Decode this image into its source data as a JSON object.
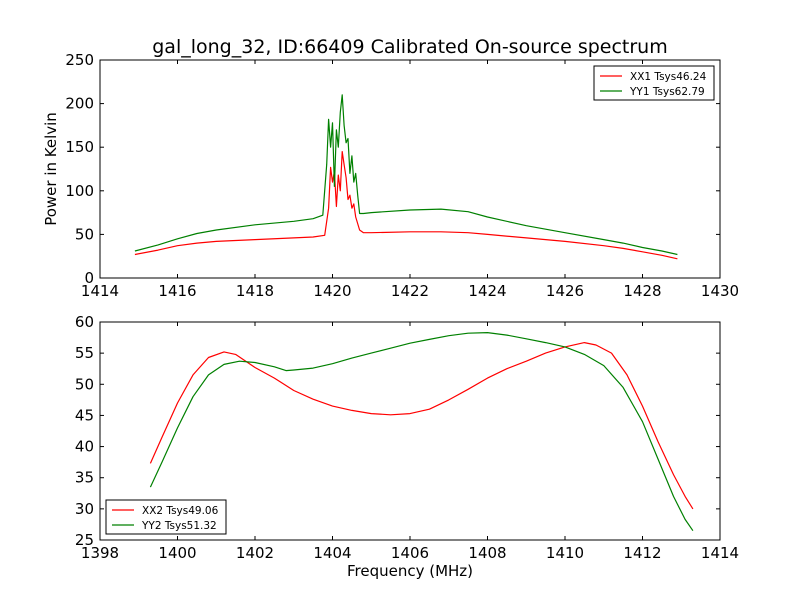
{
  "title": "gal_long_32, ID:66409 Calibrated On-source spectrum",
  "chart_data": [
    {
      "type": "line",
      "ylabel": "Power in Kelvin",
      "xlabel": "",
      "xlim": [
        1414,
        1430
      ],
      "ylim": [
        0,
        250
      ],
      "xticks": [
        1414,
        1416,
        1418,
        1420,
        1422,
        1424,
        1426,
        1428,
        1430
      ],
      "yticks": [
        0,
        50,
        100,
        150,
        200,
        250
      ],
      "legend_position": "top-right",
      "series": [
        {
          "name": "XX1 Tsys46.24",
          "color": "#ff0000",
          "x": [
            1414.9,
            1415.5,
            1416.0,
            1416.5,
            1417.0,
            1418.0,
            1419.0,
            1419.5,
            1419.8,
            1419.9,
            1419.95,
            1420.0,
            1420.05,
            1420.1,
            1420.15,
            1420.2,
            1420.25,
            1420.3,
            1420.35,
            1420.4,
            1420.45,
            1420.5,
            1420.55,
            1420.6,
            1420.7,
            1420.8,
            1421.0,
            1422.0,
            1422.8,
            1423.5,
            1424.0,
            1425.0,
            1426.0,
            1427.0,
            1427.5,
            1428.0,
            1428.5,
            1428.9
          ],
          "y": [
            27,
            32,
            37,
            40,
            42,
            44,
            46,
            47,
            49,
            80,
            127,
            110,
            122,
            82,
            118,
            100,
            145,
            130,
            115,
            90,
            95,
            80,
            85,
            70,
            55,
            52,
            52,
            53,
            53,
            52,
            50,
            46,
            42,
            37,
            34,
            30,
            26,
            22
          ]
        },
        {
          "name": "YY1 Tsys62.79",
          "color": "#008000",
          "x": [
            1414.9,
            1415.5,
            1416.0,
            1416.5,
            1417.0,
            1418.0,
            1419.0,
            1419.5,
            1419.75,
            1419.85,
            1419.9,
            1419.95,
            1420.0,
            1420.05,
            1420.1,
            1420.15,
            1420.2,
            1420.25,
            1420.3,
            1420.35,
            1420.4,
            1420.45,
            1420.5,
            1420.55,
            1420.6,
            1420.65,
            1420.7,
            1420.8,
            1421.0,
            1422.0,
            1422.8,
            1423.5,
            1424.0,
            1425.0,
            1426.0,
            1427.0,
            1427.5,
            1428.0,
            1428.5,
            1428.9
          ],
          "y": [
            31,
            38,
            45,
            51,
            55,
            61,
            65,
            68,
            72,
            130,
            182,
            150,
            178,
            105,
            170,
            150,
            190,
            210,
            175,
            155,
            160,
            120,
            140,
            110,
            120,
            95,
            74,
            74,
            75,
            78,
            79,
            76,
            70,
            60,
            52,
            44,
            40,
            35,
            31,
            27
          ]
        }
      ]
    },
    {
      "type": "line",
      "ylabel": "",
      "xlabel": "Frequency (MHz)",
      "xlim": [
        1398,
        1414
      ],
      "ylim": [
        25,
        60
      ],
      "xticks": [
        1398,
        1400,
        1402,
        1404,
        1406,
        1408,
        1410,
        1412,
        1414
      ],
      "yticks": [
        25,
        30,
        35,
        40,
        45,
        50,
        55,
        60
      ],
      "legend_position": "bottom-left",
      "series": [
        {
          "name": "XX2 Tsys49.06",
          "color": "#ff0000",
          "x": [
            1399.3,
            1399.6,
            1400.0,
            1400.4,
            1400.8,
            1401.2,
            1401.5,
            1402.0,
            1402.5,
            1403.0,
            1403.5,
            1404.0,
            1404.5,
            1405.0,
            1405.5,
            1406.0,
            1406.5,
            1407.0,
            1407.5,
            1408.0,
            1408.5,
            1409.0,
            1409.5,
            1410.0,
            1410.5,
            1410.8,
            1411.2,
            1411.6,
            1412.0,
            1412.4,
            1412.8,
            1413.1,
            1413.3
          ],
          "y": [
            37.3,
            41.5,
            47.0,
            51.5,
            54.3,
            55.2,
            54.8,
            52.7,
            51.0,
            49.0,
            47.6,
            46.5,
            45.8,
            45.3,
            45.1,
            45.3,
            46.0,
            47.5,
            49.2,
            51.0,
            52.5,
            53.7,
            55.0,
            56.0,
            56.7,
            56.3,
            55.0,
            51.5,
            46.5,
            40.8,
            35.5,
            32.0,
            30.0
          ]
        },
        {
          "name": "YY2 Tsys51.32",
          "color": "#008000",
          "x": [
            1399.3,
            1399.6,
            1400.0,
            1400.4,
            1400.8,
            1401.2,
            1401.6,
            1402.0,
            1402.5,
            1402.8,
            1403.0,
            1403.5,
            1404.0,
            1404.5,
            1405.0,
            1405.5,
            1406.0,
            1406.5,
            1407.0,
            1407.5,
            1408.0,
            1408.5,
            1409.0,
            1409.5,
            1410.0,
            1410.5,
            1411.0,
            1411.5,
            1412.0,
            1412.4,
            1412.8,
            1413.1,
            1413.3
          ],
          "y": [
            33.5,
            37.5,
            43.0,
            48.0,
            51.5,
            53.2,
            53.7,
            53.5,
            52.8,
            52.2,
            52.3,
            52.6,
            53.3,
            54.2,
            55.0,
            55.8,
            56.6,
            57.2,
            57.8,
            58.2,
            58.3,
            57.9,
            57.3,
            56.7,
            56.0,
            54.8,
            53.0,
            49.5,
            44.0,
            38.0,
            32.0,
            28.3,
            26.5
          ]
        }
      ]
    }
  ]
}
